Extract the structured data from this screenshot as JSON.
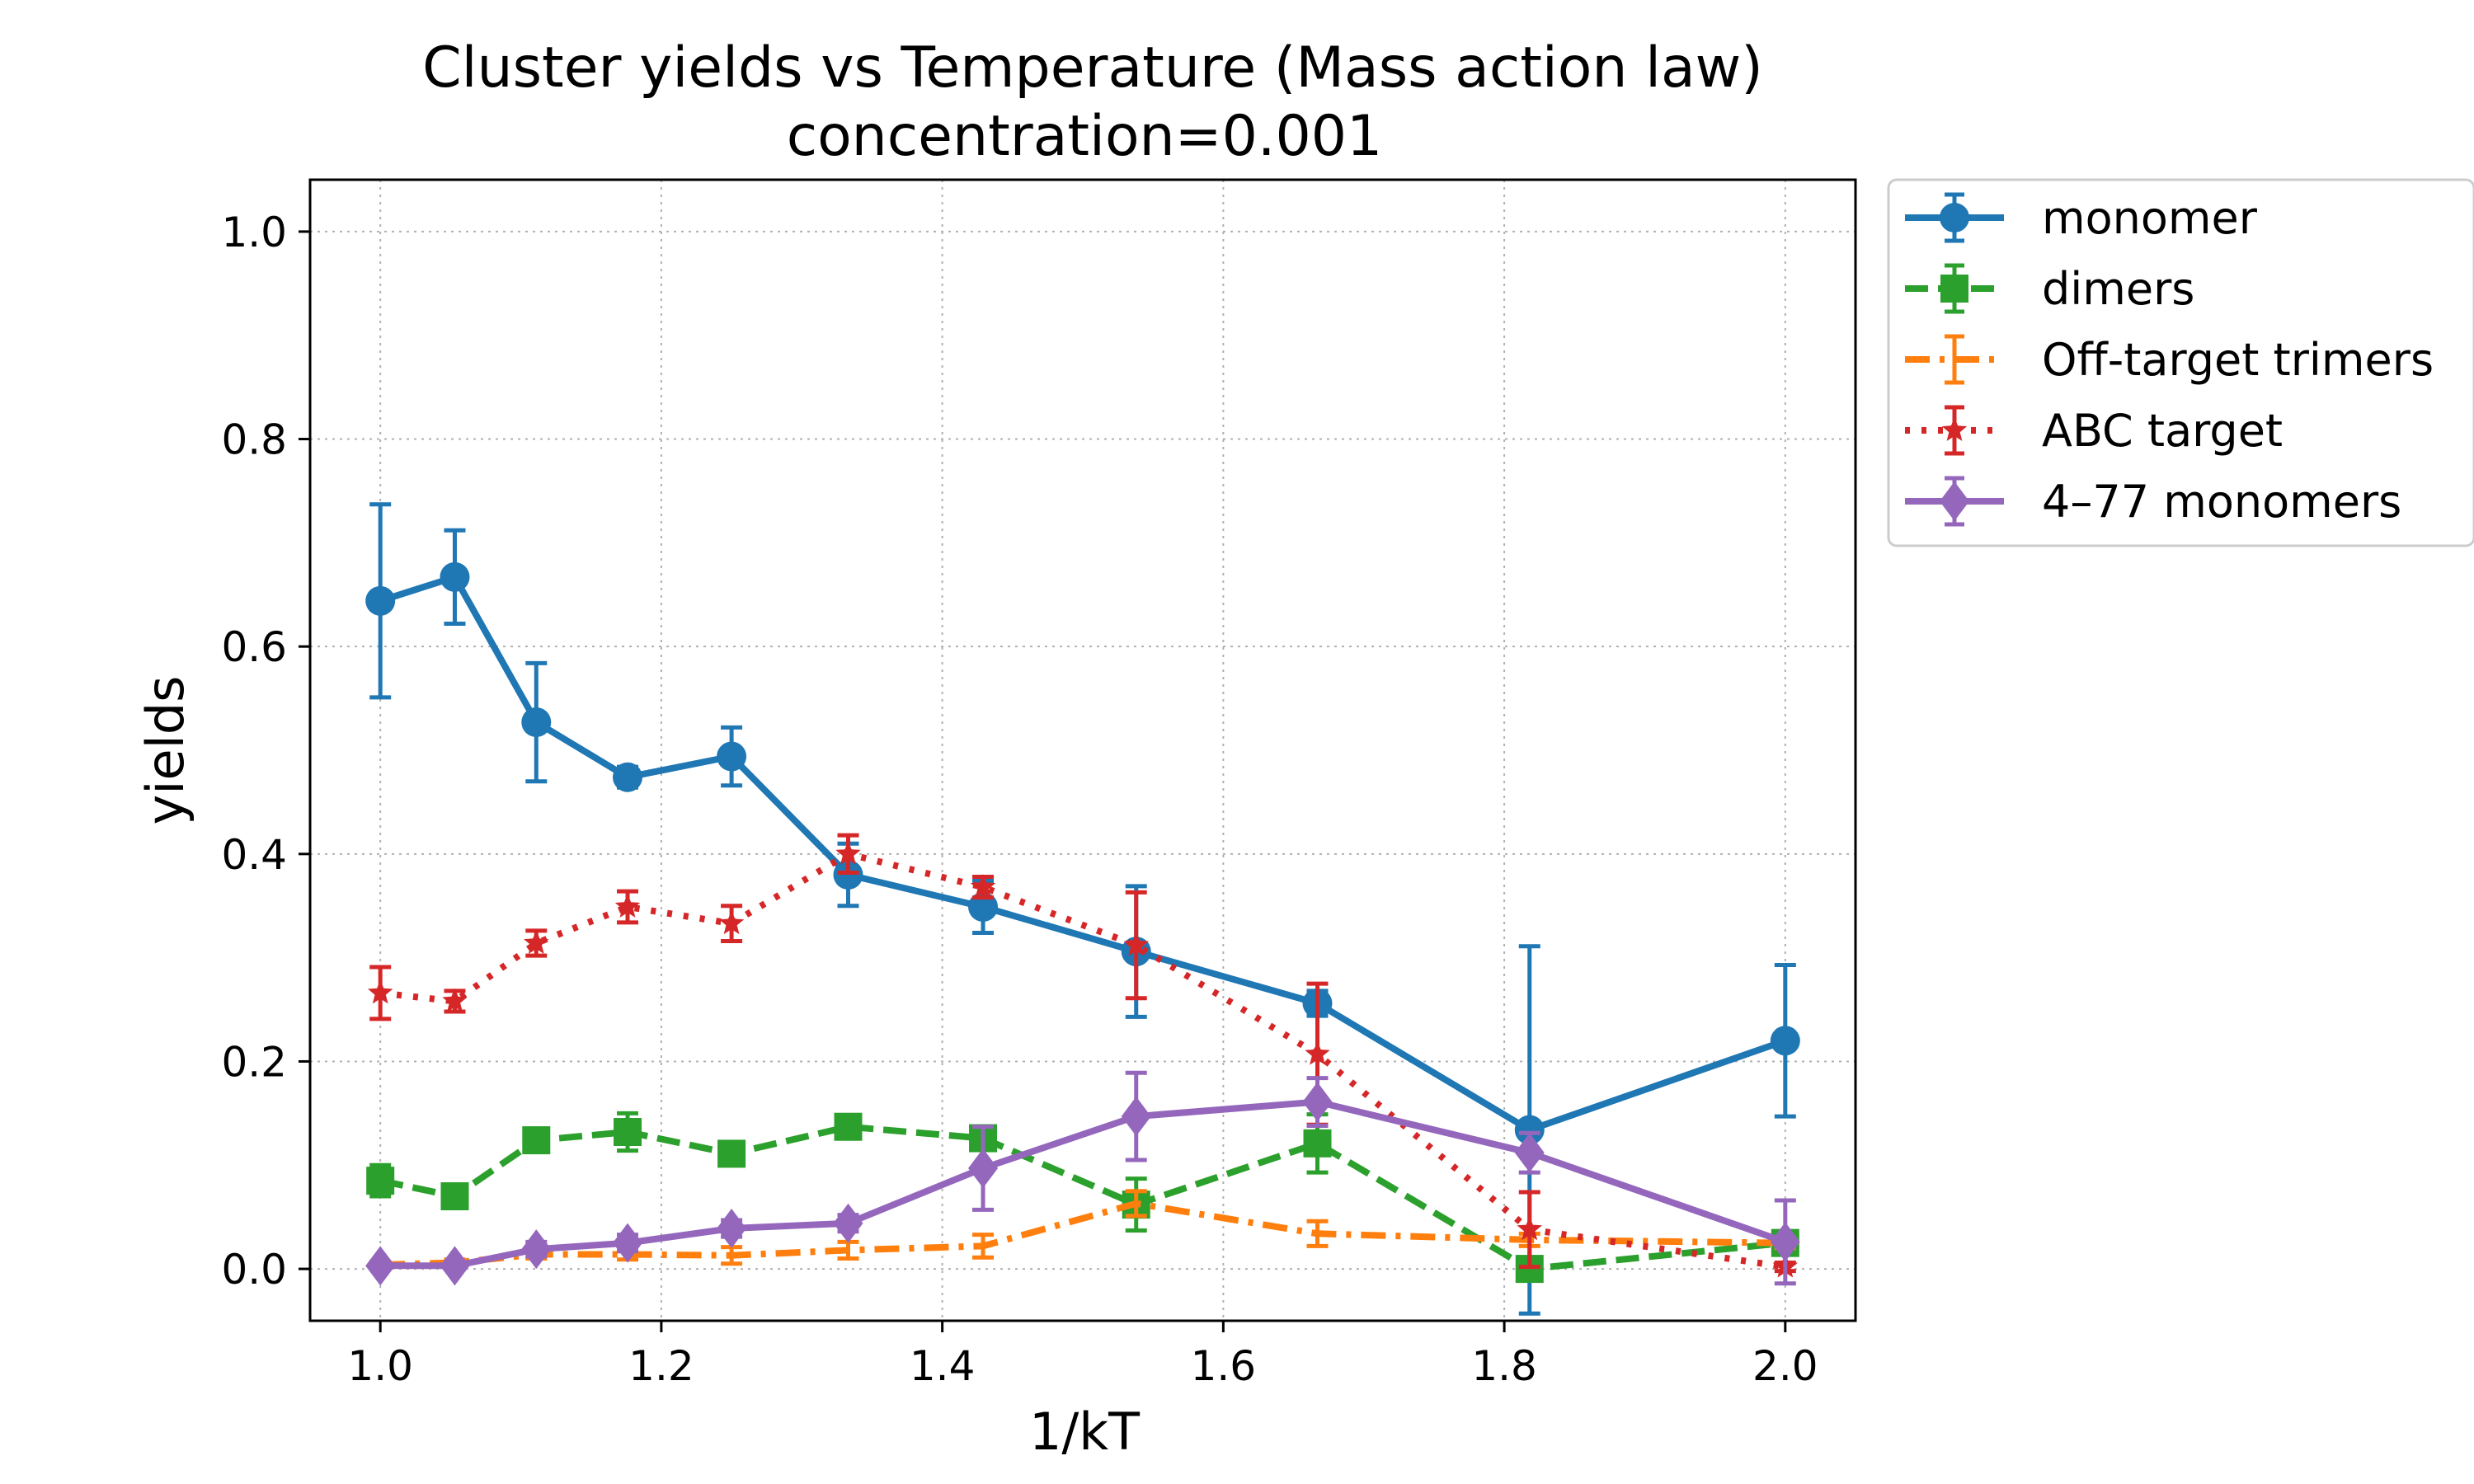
{
  "chart_data": {
    "type": "line",
    "title": "Cluster yields vs Temperature (Mass action law)",
    "subtitle": "concentration=0.001",
    "xlabel": "1/kT",
    "ylabel": "yields",
    "xlim": [
      0.95,
      2.05
    ],
    "ylim": [
      -0.05,
      1.05
    ],
    "xticks": [
      1.0,
      1.2,
      1.4,
      1.6,
      1.8,
      2.0
    ],
    "xtick_labels": [
      "1.0",
      "1.2",
      "1.4",
      "1.6",
      "1.8",
      "2.0"
    ],
    "yticks": [
      0.0,
      0.2,
      0.4,
      0.6,
      0.8,
      1.0
    ],
    "ytick_labels": [
      "0.0",
      "0.2",
      "0.4",
      "0.6",
      "0.8",
      "1.0"
    ],
    "grid": true,
    "legend_position": "outside top-right",
    "x": [
      1.0,
      1.053,
      1.111,
      1.176,
      1.25,
      1.333,
      1.429,
      1.538,
      1.667,
      1.818,
      2.0
    ],
    "series": [
      {
        "name": "monomer",
        "color": "#1f77b4",
        "marker": "circle",
        "linestyle": "solid",
        "values": [
          0.644,
          0.667,
          0.527,
          0.474,
          0.494,
          0.38,
          0.349,
          0.306,
          0.256,
          0.134,
          0.22
        ],
        "errors": [
          0.093,
          0.045,
          0.057,
          0.01,
          0.028,
          0.03,
          0.025,
          0.063,
          0.012,
          0.177,
          0.073
        ]
      },
      {
        "name": "dimers",
        "color": "#2ca02c",
        "marker": "square",
        "linestyle": "dashed",
        "values": [
          0.085,
          0.07,
          0.124,
          0.132,
          0.111,
          0.137,
          0.126,
          0.062,
          0.121,
          0.0,
          0.025
        ],
        "errors": [
          0.015,
          0.008,
          0.008,
          0.018,
          0.008,
          0.006,
          0.008,
          0.025,
          0.028,
          0.0,
          0.008
        ]
      },
      {
        "name": "Off-target trimers",
        "color": "#ff7f0e",
        "marker": "none",
        "linestyle": "dashdot",
        "values": [
          0.004,
          0.006,
          0.014,
          0.014,
          0.013,
          0.018,
          0.022,
          0.063,
          0.034,
          0.028,
          0.025
        ],
        "errors": [
          0.003,
          0.003,
          0.004,
          0.005,
          0.008,
          0.008,
          0.011,
          0.012,
          0.012,
          0.006,
          0.005
        ]
      },
      {
        "name": "ABC target",
        "color": "#d62728",
        "marker": "star",
        "linestyle": "dotted",
        "values": [
          0.266,
          0.258,
          0.314,
          0.349,
          0.333,
          0.4,
          0.368,
          0.312,
          0.207,
          0.038,
          0.002
        ],
        "errors": [
          0.025,
          0.01,
          0.012,
          0.015,
          0.017,
          0.018,
          0.01,
          0.051,
          0.068,
          0.036,
          0.004
        ]
      },
      {
        "name": "4–77 monomers",
        "color": "#9467bd",
        "marker": "diamond",
        "linestyle": "solid",
        "values": [
          0.003,
          0.003,
          0.019,
          0.025,
          0.039,
          0.044,
          0.097,
          0.147,
          0.161,
          0.112,
          0.026
        ],
        "errors": [
          0.002,
          0.002,
          0.007,
          0.008,
          0.008,
          0.008,
          0.04,
          0.042,
          0.023,
          0.019,
          0.04
        ]
      }
    ]
  }
}
